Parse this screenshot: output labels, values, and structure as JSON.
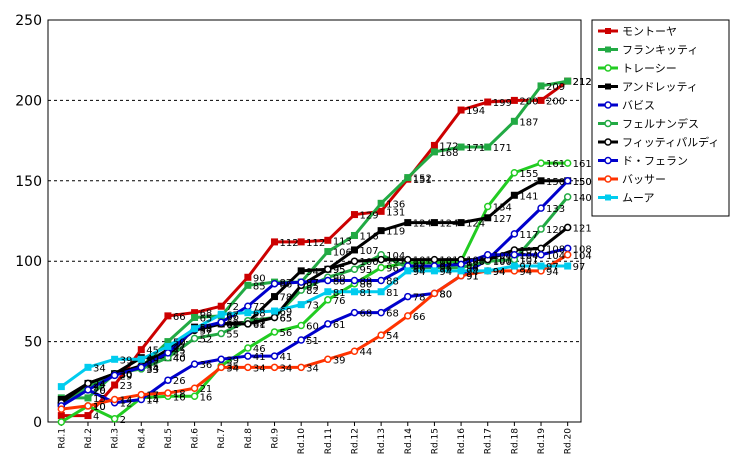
{
  "chart_data": {
    "type": "line",
    "title": "",
    "xlabel": "",
    "ylabel": "",
    "ylim": [
      0,
      250
    ],
    "yticks": [
      "0",
      "50",
      "100",
      "150",
      "200",
      "250"
    ],
    "categories": [
      "Rd.1",
      "Rd.2",
      "Rd.3",
      "Rd.4",
      "Rd.5",
      "Rd.6",
      "Rd.7",
      "Rd.8",
      "Rd.9",
      "Rd.10",
      "Rd.11",
      "Rd.12",
      "Rd.13",
      "Rd.14",
      "Rd.15",
      "Rd.16",
      "Rd.17",
      "Rd.18",
      "Rd.19",
      "Rd.20"
    ],
    "grid": "horizontal dashed",
    "legend_position": "right",
    "series": [
      {
        "name": "モントーヤ",
        "color": "#cc0000",
        "marker": "square",
        "label_at": [],
        "values": [
          4,
          4,
          23,
          45,
          66,
          68,
          72,
          90,
          112,
          112,
          113,
          129,
          131,
          151,
          172,
          194,
          199,
          200,
          200,
          212
        ]
      },
      {
        "name": "フランキッティ",
        "color": "#22aa44",
        "marker": "square",
        "label_at": [],
        "values": [
          15,
          15,
          30,
          34,
          50,
          65,
          66,
          85,
          87,
          87,
          106,
          116,
          136,
          152,
          168,
          171,
          171,
          187,
          209,
          212
        ]
      },
      {
        "name": "トレーシー",
        "color": "#22cc22",
        "marker": "circle",
        "label_at": [],
        "values": [
          0,
          10,
          2,
          15,
          16,
          16,
          35,
          46,
          56,
          60,
          76,
          86,
          96,
          99,
          99,
          100,
          134,
          155,
          161,
          161
        ]
      },
      {
        "name": "アンドレッティ",
        "color": "#000000",
        "marker": "square",
        "label_at": [],
        "values": [
          14,
          24,
          30,
          40,
          40,
          59,
          61,
          62,
          78,
          94,
          95,
          107,
          119,
          124,
          124,
          124,
          127,
          141,
          150,
          150
        ]
      },
      {
        "name": "バビス",
        "color": "#0000cc",
        "marker": "circle",
        "label_at": [],
        "values": [
          11,
          20,
          12,
          14,
          26,
          36,
          39,
          41,
          41,
          51,
          61,
          68,
          68,
          78,
          80,
          91,
          101,
          117,
          133,
          150
        ]
      },
      {
        "name": "フェルナンデス",
        "color": "#22aa44",
        "marker": "circle",
        "label_at": [],
        "values": [
          10,
          22,
          30,
          33,
          40,
          52,
          55,
          63,
          65,
          82,
          90,
          95,
          104,
          96,
          96,
          96,
          100,
          101,
          120,
          140
        ]
      },
      {
        "name": "フィッティパルディ",
        "color": "#000000",
        "marker": "circle",
        "label_at": [],
        "values": [
          12,
          24,
          30,
          35,
          45,
          57,
          61,
          61,
          65,
          85,
          95,
          100,
          101,
          101,
          101,
          101,
          101,
          107,
          108,
          121
        ]
      },
      {
        "name": "ド・フェラン",
        "color": "#0000cc",
        "marker": "circle",
        "label_at": [],
        "values": [
          10,
          20,
          29,
          34,
          43,
          58,
          62,
          72,
          86,
          87,
          88,
          88,
          88,
          97,
          97,
          98,
          104,
          104,
          104,
          108
        ]
      },
      {
        "name": "バッサー",
        "color": "#ff3300",
        "marker": "circle",
        "label_at": [],
        "values": [
          8,
          10,
          14,
          17,
          18,
          21,
          34,
          34,
          34,
          34,
          39,
          44,
          54,
          66,
          80,
          91,
          94,
          94,
          94,
          104
        ]
      },
      {
        "name": "ムーア",
        "color": "#00ccee",
        "marker": "square",
        "label_at": [],
        "values": [
          22,
          34,
          39,
          39,
          47,
          58,
          67,
          68,
          69,
          73,
          81,
          81,
          81,
          94,
          94,
          94,
          94,
          97,
          97,
          97
        ]
      }
    ]
  }
}
